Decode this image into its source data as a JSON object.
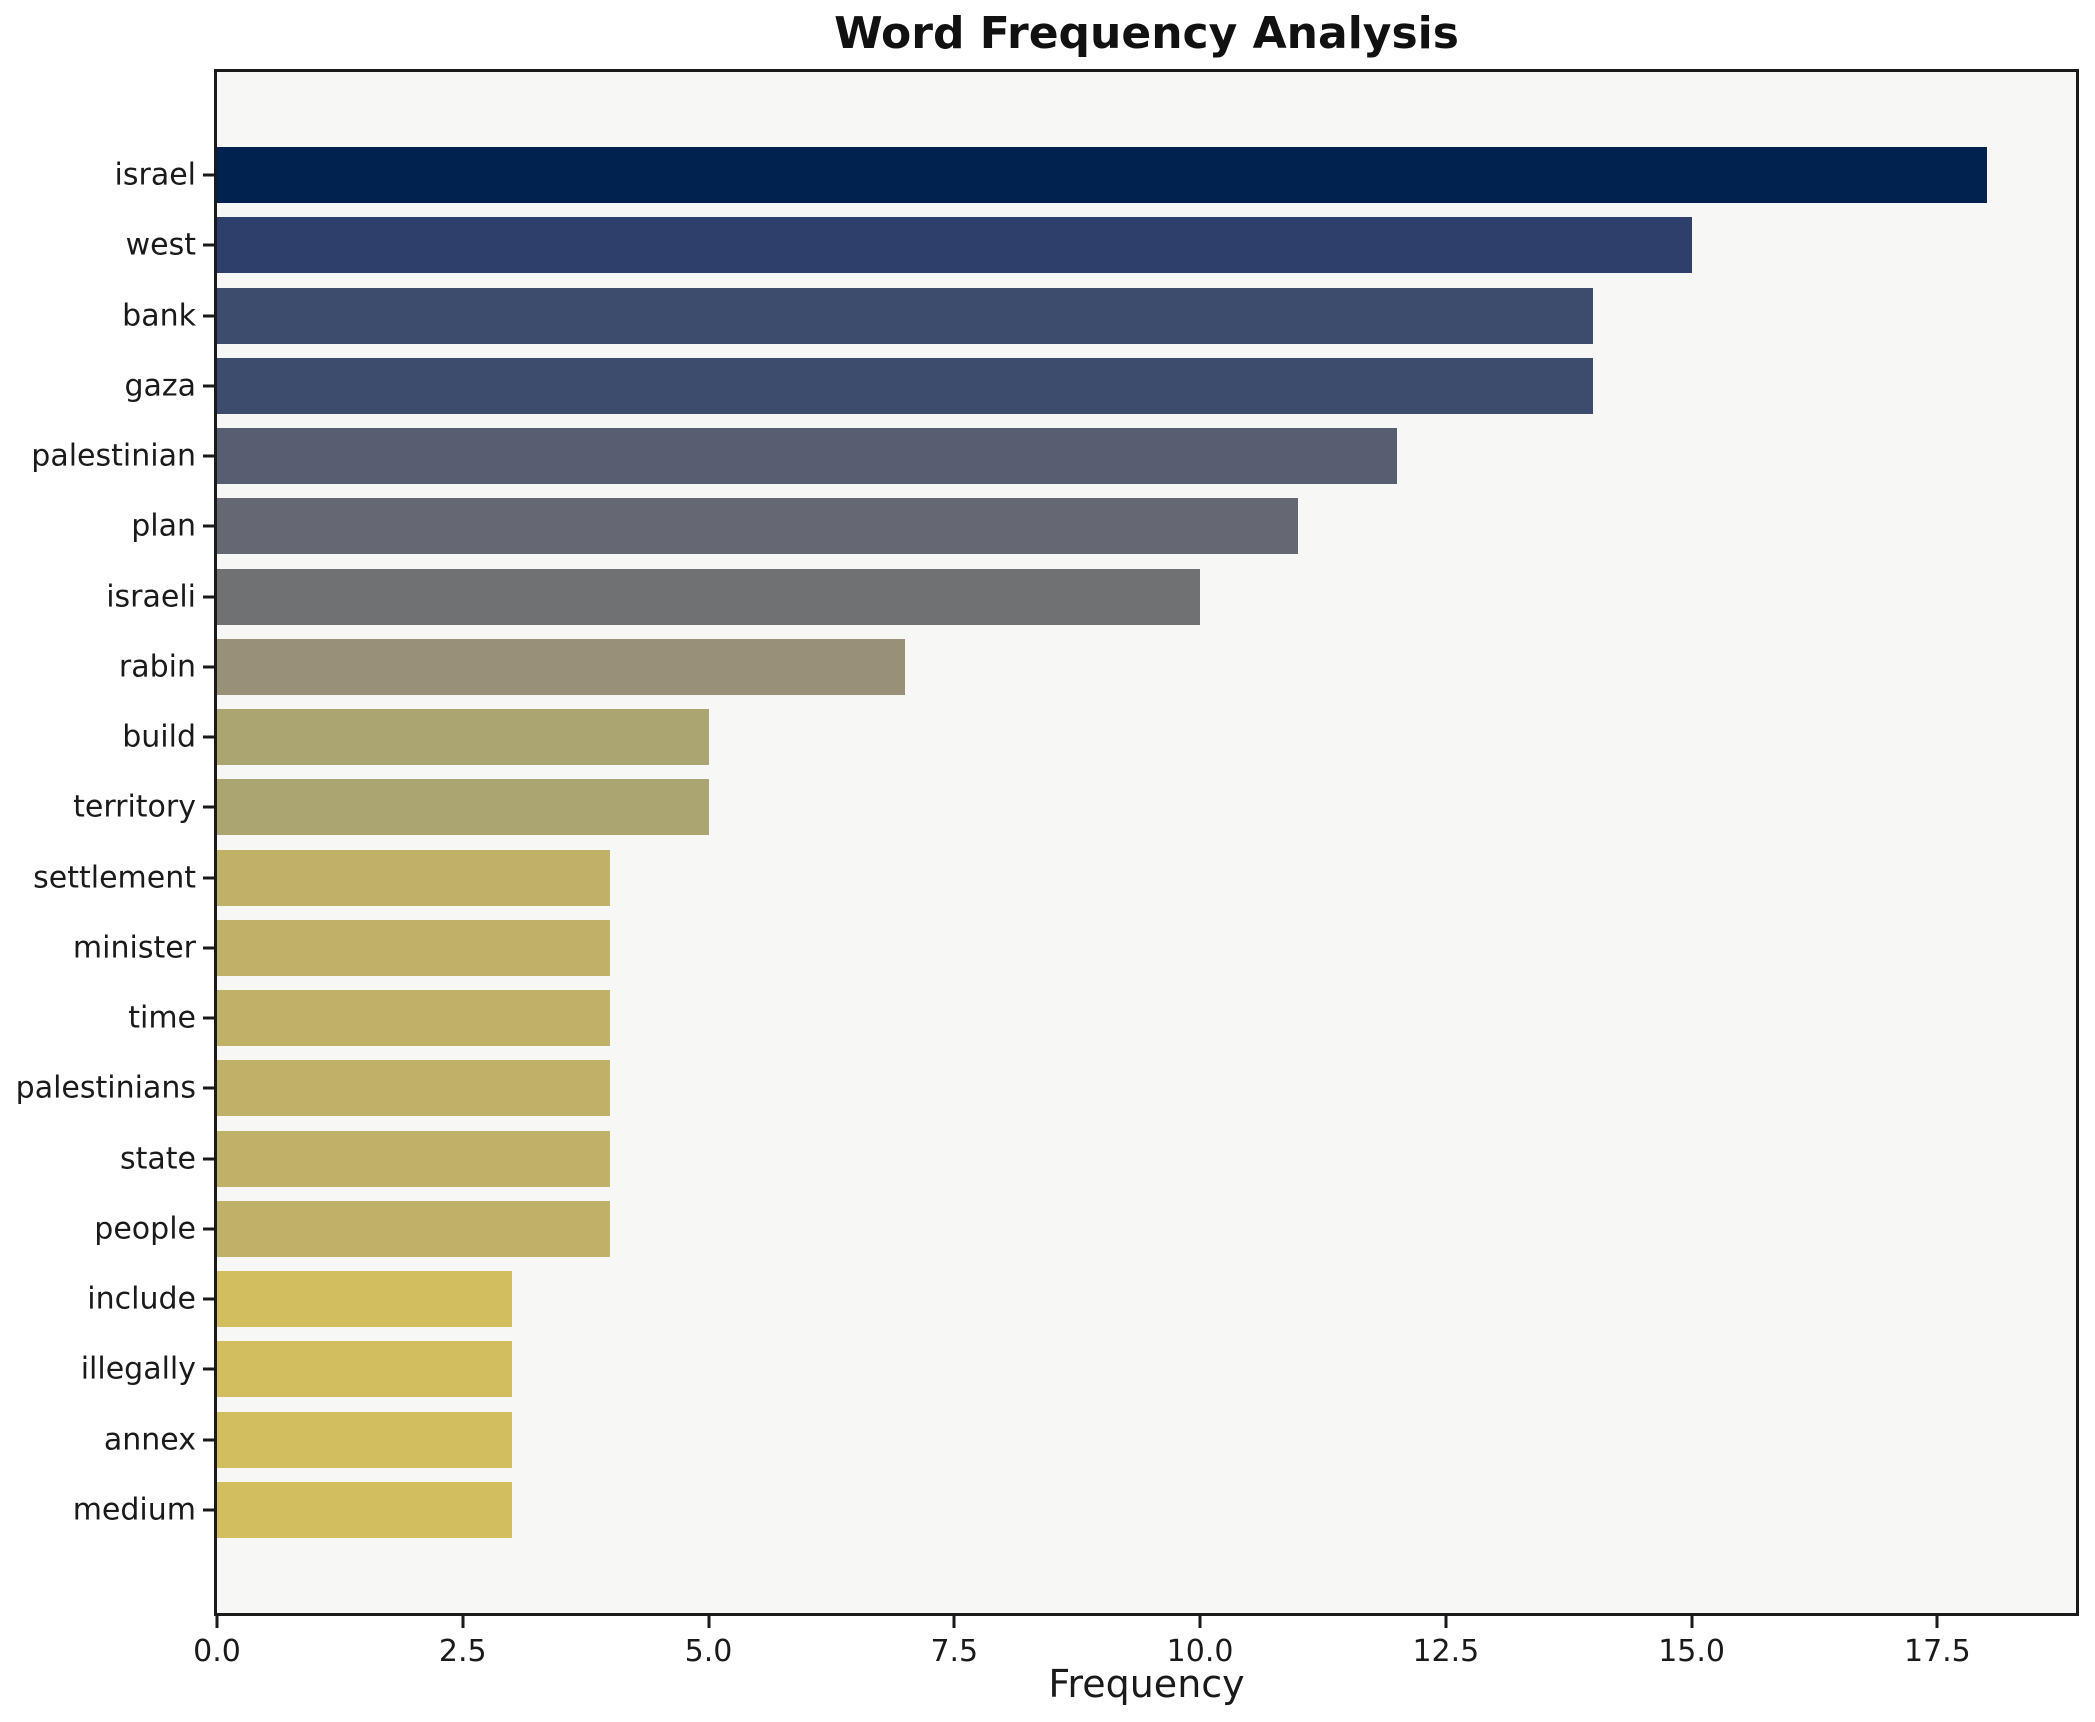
{
  "chart_data": {
    "type": "bar",
    "orientation": "horizontal",
    "title": "Word Frequency Analysis",
    "xlabel": "Frequency",
    "ylabel": "",
    "categories": [
      "israel",
      "west",
      "bank",
      "gaza",
      "palestinian",
      "plan",
      "israeli",
      "rabin",
      "build",
      "territory",
      "settlement",
      "minister",
      "time",
      "palestinians",
      "state",
      "people",
      "include",
      "illegally",
      "annex",
      "medium"
    ],
    "values": [
      18,
      15,
      14,
      14,
      12,
      11,
      10,
      7,
      5,
      5,
      4,
      4,
      4,
      4,
      4,
      4,
      3,
      3,
      3,
      3
    ],
    "bar_colors": [
      "#01224e",
      "#2d3f6a",
      "#3d4b6d",
      "#3d4b6d",
      "#575e71",
      "#656872",
      "#707172",
      "#989177",
      "#aba572",
      "#aba572",
      "#c0b169",
      "#c0b169",
      "#c0b169",
      "#c0b169",
      "#c0b169",
      "#c0b169",
      "#d2bd5f",
      "#d2bd5f",
      "#d2bd5f",
      "#d2bd5f"
    ],
    "xlim": [
      0,
      18.91
    ],
    "x_ticks": [
      0.0,
      2.5,
      5.0,
      7.5,
      10.0,
      12.5,
      15.0,
      17.5
    ],
    "x_tick_labels": [
      "0.0",
      "2.5",
      "5.0",
      "7.5",
      "10.0",
      "12.5",
      "15.0",
      "17.5"
    ],
    "grid": false,
    "legend_position": "none",
    "plot_bg": "#f7f7f5",
    "figure_bg": "#ffffff"
  }
}
